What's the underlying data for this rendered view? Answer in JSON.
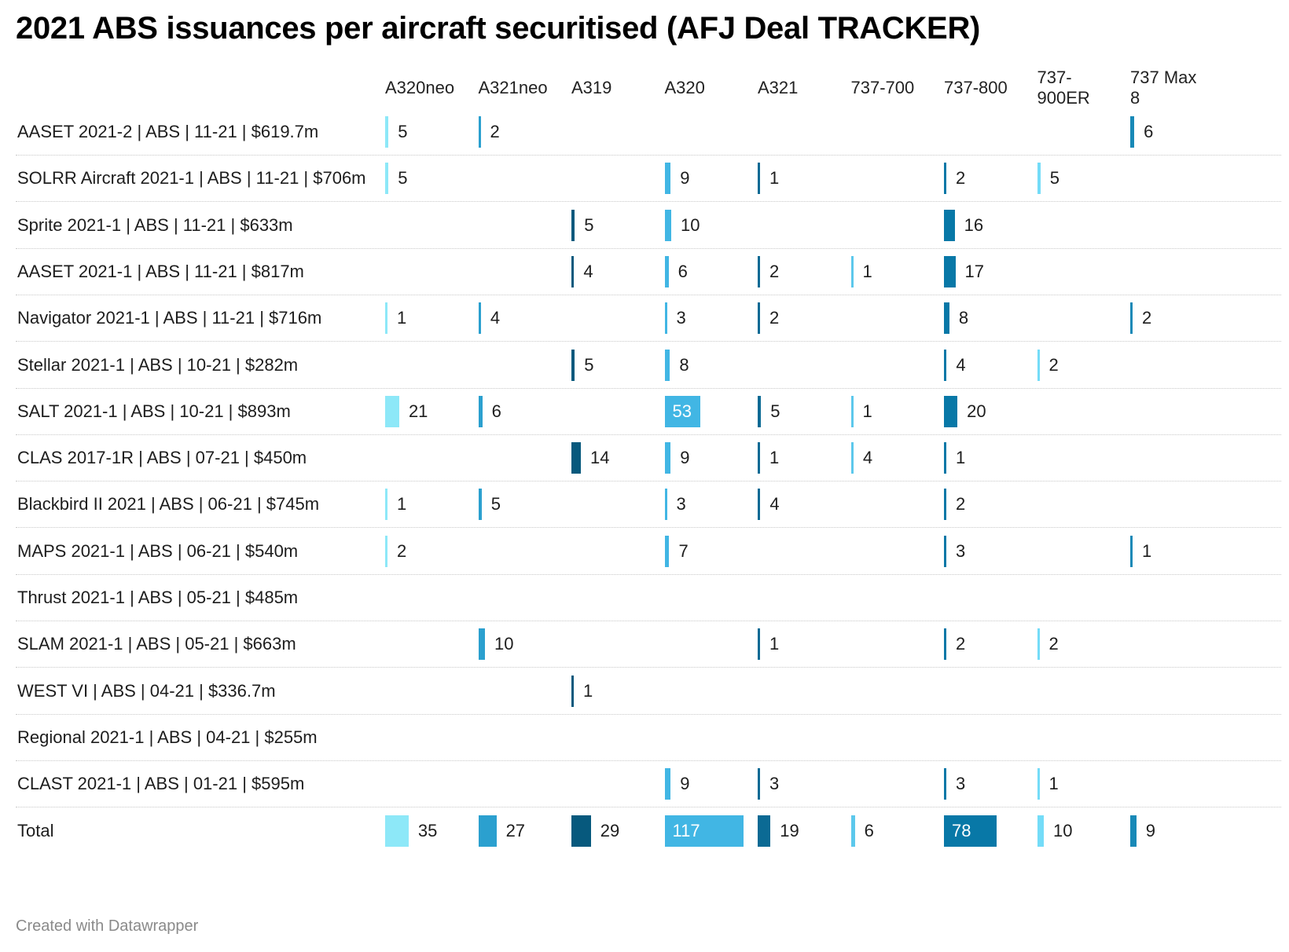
{
  "title": "2021 ABS issuances per aircraft securitised (AFJ Deal TRACKER)",
  "footer": "Created with Datawrapper",
  "colors": {
    "A320neo": "#8de8f8",
    "A321neo": "#2ba0cf",
    "A319": "#07597d",
    "A320": "#41b6e4",
    "A321": "#0b6a94",
    "737-700": "#5cc8ec",
    "737-800": "#0878a7",
    "737-900ER": "#74dcf8",
    "737 Max 8": "#1889b7"
  },
  "chart_data": {
    "type": "table",
    "columns": [
      "A320neo",
      "A321neo",
      "A319",
      "A320",
      "A321",
      "737-700",
      "737-800",
      "737-900ER",
      "737 Max 8"
    ],
    "column_headers": [
      "A320neo",
      "A321neo",
      "A319",
      "A320",
      "A321",
      "737-700",
      "737-800",
      "737-\n900ER",
      "737 Max\n8"
    ],
    "rows": [
      {
        "label": "AASET 2021-2 | ABS | 11-21 | $619.7m",
        "values": [
          5,
          2,
          null,
          null,
          null,
          null,
          null,
          null,
          6
        ]
      },
      {
        "label": "SOLRR Aircraft 2021-1 | ABS | 11-21 | $706m",
        "values": [
          5,
          null,
          null,
          9,
          1,
          null,
          2,
          5,
          null
        ]
      },
      {
        "label": "Sprite 2021-1 | ABS | 11-21 | $633m",
        "values": [
          null,
          null,
          5,
          10,
          null,
          null,
          16,
          null,
          null
        ]
      },
      {
        "label": "AASET 2021-1 | ABS | 11-21 | $817m",
        "values": [
          null,
          null,
          4,
          6,
          2,
          1,
          17,
          null,
          null
        ]
      },
      {
        "label": "Navigator 2021-1 | ABS | 11-21 | $716m",
        "values": [
          1,
          4,
          null,
          3,
          2,
          null,
          8,
          null,
          2
        ]
      },
      {
        "label": "Stellar 2021-1 | ABS | 10-21 | $282m",
        "values": [
          null,
          null,
          5,
          8,
          null,
          null,
          4,
          2,
          null
        ]
      },
      {
        "label": "SALT 2021-1 | ABS | 10-21 | $893m",
        "values": [
          21,
          6,
          null,
          53,
          5,
          1,
          20,
          null,
          null
        ]
      },
      {
        "label": "CLAS 2017-1R | ABS | 07-21 | $450m",
        "values": [
          null,
          null,
          14,
          9,
          1,
          4,
          1,
          null,
          null
        ]
      },
      {
        "label": "Blackbird II 2021 | ABS | 06-21 | $745m",
        "values": [
          1,
          5,
          null,
          3,
          4,
          null,
          2,
          null,
          null
        ]
      },
      {
        "label": "MAPS 2021-1 | ABS | 06-21 | $540m",
        "values": [
          2,
          null,
          null,
          7,
          null,
          null,
          3,
          null,
          1
        ]
      },
      {
        "label": "Thrust 2021-1 | ABS | 05-21 | $485m",
        "values": [
          null,
          null,
          null,
          null,
          null,
          null,
          null,
          null,
          null
        ]
      },
      {
        "label": "SLAM 2021-1 | ABS | 05-21 | $663m",
        "values": [
          null,
          10,
          null,
          null,
          1,
          null,
          2,
          2,
          null
        ]
      },
      {
        "label": "WEST VI | ABS | 04-21 | $336.7m",
        "values": [
          null,
          null,
          1,
          null,
          null,
          null,
          null,
          null,
          null
        ]
      },
      {
        "label": "Regional 2021-1 | ABS | 04-21 | $255m",
        "values": [
          null,
          null,
          null,
          null,
          null,
          null,
          null,
          null,
          null
        ]
      },
      {
        "label": "CLAST 2021-1 | ABS | 01-21 | $595m",
        "values": [
          null,
          null,
          null,
          9,
          3,
          null,
          3,
          1,
          null
        ]
      }
    ],
    "total": {
      "label": "Total",
      "values": [
        35,
        27,
        29,
        117,
        19,
        6,
        78,
        10,
        9
      ]
    },
    "bar_scale_max": 117,
    "grid": false,
    "legend": "none"
  }
}
